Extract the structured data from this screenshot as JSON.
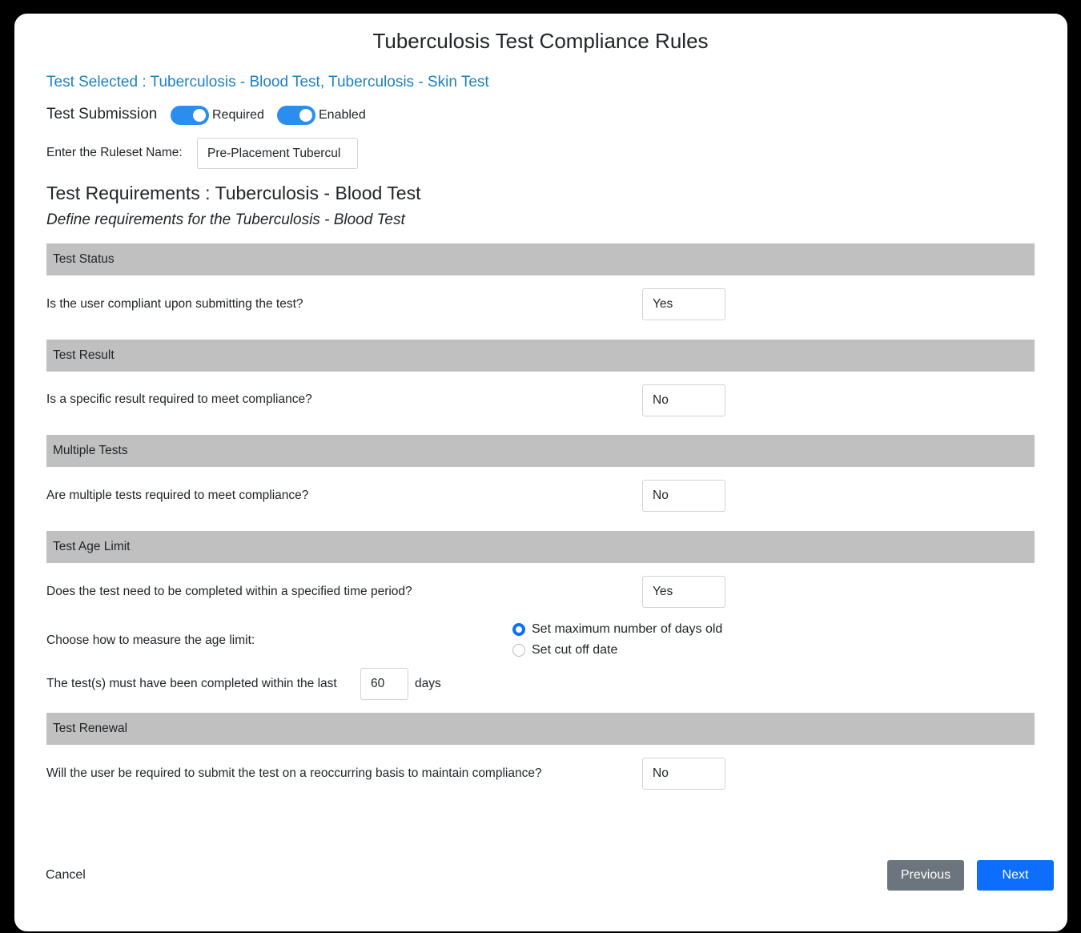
{
  "title": "Tuberculosis Test Compliance Rules",
  "test_selected": "Test Selected : Tuberculosis - Blood Test, Tuberculosis - Skin Test",
  "submission": {
    "label": "Test Submission",
    "required_label": "Required",
    "required_on": true,
    "enabled_label": "Enabled",
    "enabled_on": true
  },
  "ruleset": {
    "label": "Enter the Ruleset Name:",
    "value": "Pre-Placement Tubercul"
  },
  "requirements_title": "Test Requirements : Tuberculosis - Blood Test",
  "requirements_subtitle": "Define requirements for the Tuberculosis - Blood Test",
  "sections": [
    {
      "header": "Test Status",
      "question": "Is the user compliant upon submitting the test?",
      "value": "Yes"
    },
    {
      "header": "Test Result",
      "question": "Is a specific result required to meet compliance?",
      "value": "No"
    },
    {
      "header": "Multiple Tests",
      "question": "Are multiple tests required to meet compliance?",
      "value": "No"
    },
    {
      "header": "Test Age Limit",
      "question": "Does the test need to be completed within a specified time period?",
      "value": "Yes"
    },
    {
      "header": "Test Renewal",
      "question": "Will the user be required to submit the test on a reoccurring basis to maintain compliance?",
      "value": "No"
    }
  ],
  "age_limit": {
    "measure_label": "Choose how to measure the age limit:",
    "options": [
      {
        "label": "Set maximum number of days old",
        "checked": true
      },
      {
        "label": "Set cut off date",
        "checked": false
      }
    ],
    "within_label": "The test(s) must have been completed within the last",
    "days_value": "60",
    "days_unit": "days"
  },
  "footer": {
    "cancel": "Cancel",
    "previous": "Previous",
    "next": "Next"
  },
  "colors": {
    "accent": "#0d6efd",
    "link": "#1a82c4",
    "secondary": "#6c757d",
    "section_bar": "#c0c0c0"
  }
}
